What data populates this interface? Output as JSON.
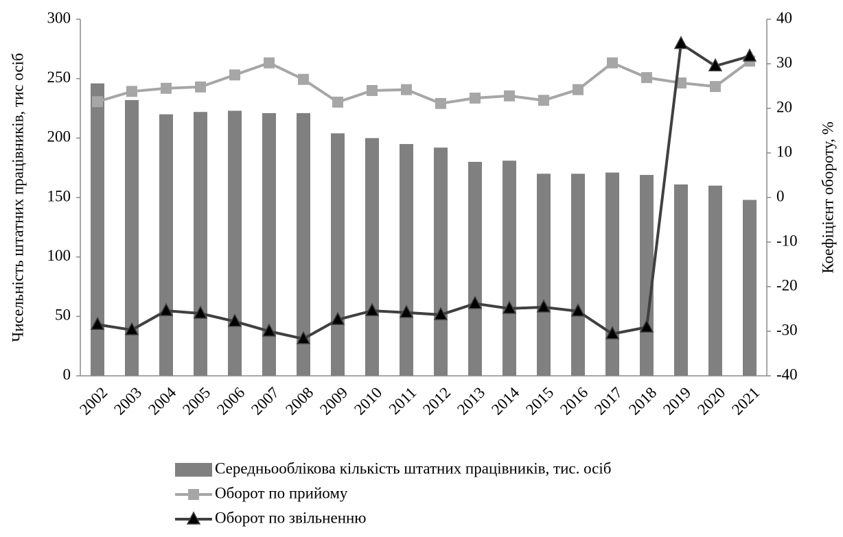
{
  "chart_data": {
    "type": "bar_line",
    "y_label": "Чисельність штатних працівників, тис осіб",
    "y2_label": "Коефіцієнт обороту, %",
    "categories": [
      "2002",
      "2003",
      "2004",
      "2005",
      "2006",
      "2007",
      "2008",
      "2009",
      "2010",
      "2011",
      "2012",
      "2013",
      "2014",
      "2015",
      "2016",
      "2017",
      "2018",
      "2019",
      "2020",
      "2021"
    ],
    "series": [
      {
        "name": "Середньооблікова кількість штатних працівників, тис. осіб",
        "type": "bar",
        "color": "#808080",
        "values": [
          246,
          232,
          220,
          222,
          223,
          221,
          221,
          204,
          200,
          195,
          192,
          180,
          181,
          170,
          170,
          171,
          169,
          161,
          160,
          148
        ]
      },
      {
        "name": "Оборот по прийому",
        "type": "line",
        "marker": "square",
        "axis": "y2",
        "color": "#a6a6a6",
        "values": [
          21.5,
          23.8,
          24.5,
          24.8,
          27.5,
          30.2,
          26.5,
          21.4,
          24,
          24.2,
          21.1,
          22.3,
          22.8,
          21.8,
          24.2,
          30.2,
          26.9,
          25.7,
          24.9,
          30.6
        ]
      },
      {
        "name": "Оборот по звільненню",
        "type": "line",
        "marker": "triangle",
        "axis": "y2",
        "color": "#404040",
        "values": [
          -28.5,
          -29.7,
          -25.4,
          -26,
          -27.8,
          -30,
          -31.7,
          -27.4,
          -25.4,
          -25.8,
          -26.3,
          -23.8,
          -24.9,
          -24.6,
          -25.5,
          -30.6,
          -29.1,
          34.5,
          29.5,
          31.7
        ]
      }
    ],
    "ylim": [
      0,
      300
    ],
    "yticks": [
      0,
      50,
      100,
      150,
      200,
      250,
      300
    ],
    "y2lim": [
      -40,
      40
    ],
    "y2ticks": [
      -40,
      -30,
      -20,
      -10,
      0,
      10,
      20,
      30,
      40
    ],
    "grid": false
  }
}
